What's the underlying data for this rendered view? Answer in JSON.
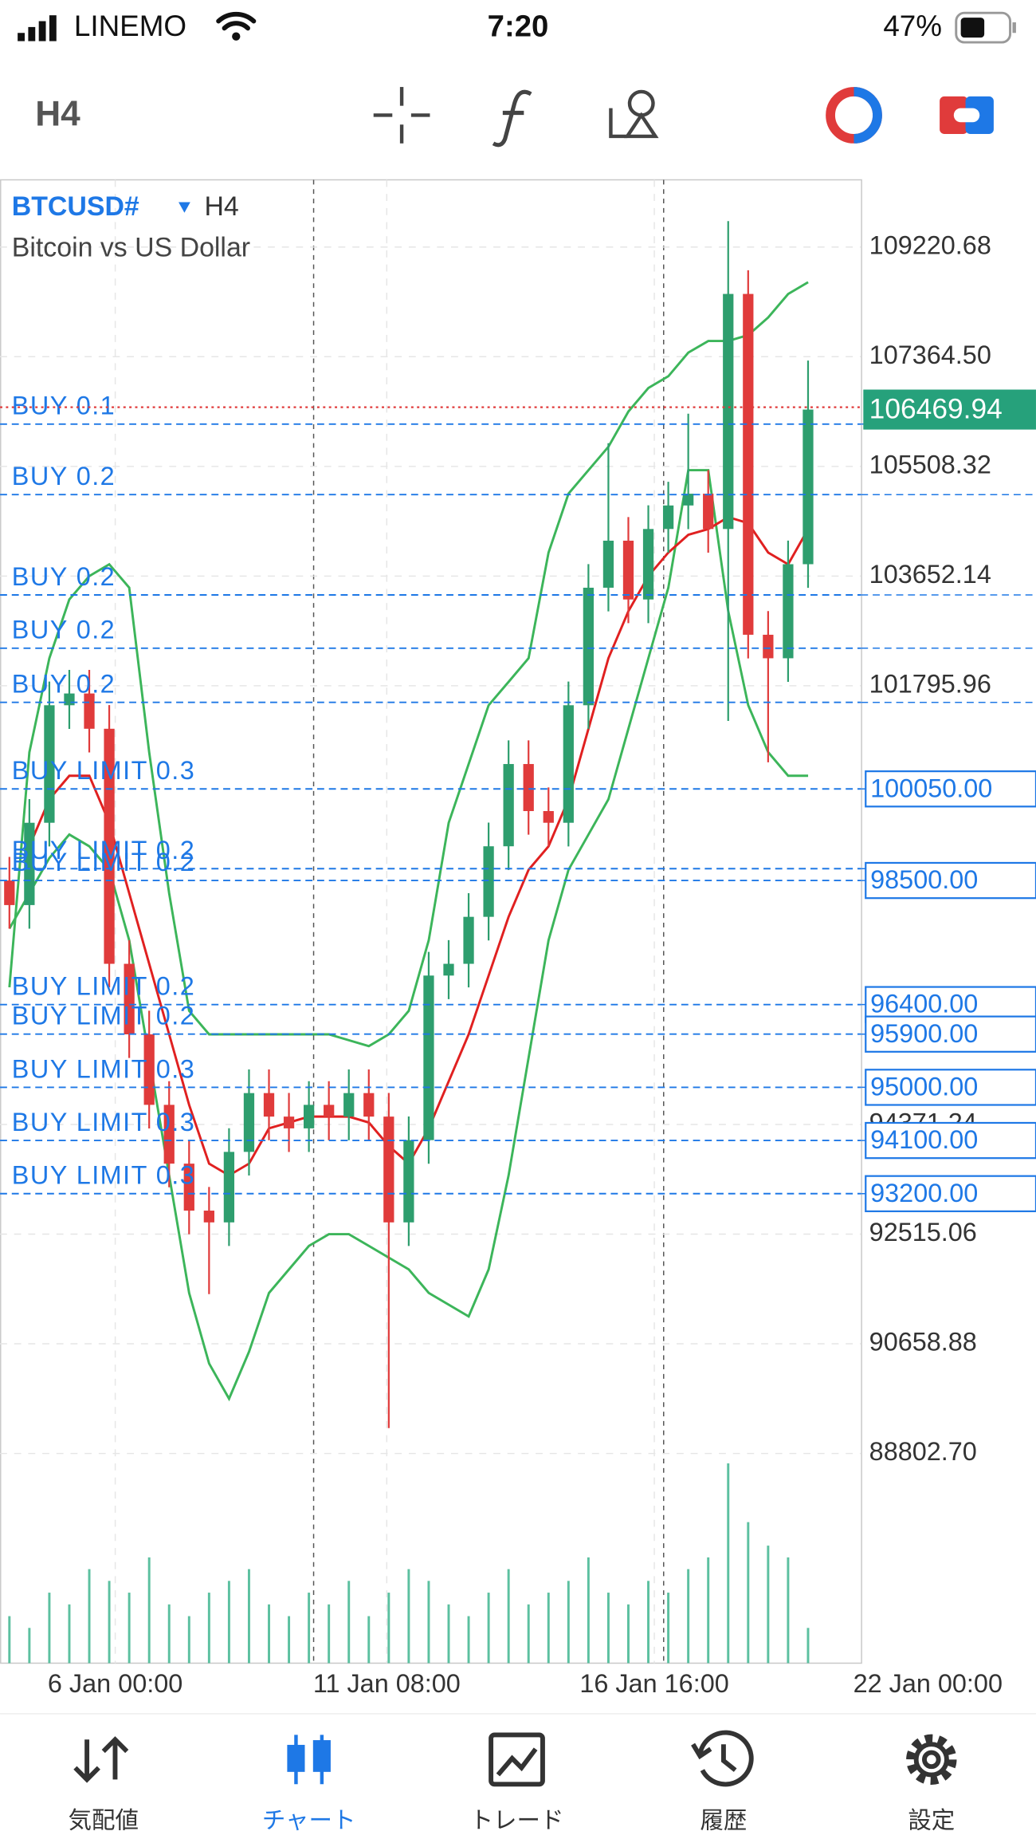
{
  "status_bar": {
    "carrier": "LINEMO",
    "time": "7:20",
    "battery": "47%"
  },
  "toolbar": {
    "timeframe": "H4"
  },
  "chart_data": {
    "type": "candlestick",
    "symbol": "BTCUSD#",
    "timeframe": "H4",
    "description": "Bitcoin vs US Dollar",
    "up_color": "#2e9e6e",
    "down_color": "#e03b3b",
    "x": [
      0,
      1,
      2,
      3,
      4,
      5,
      6,
      7,
      8,
      9,
      10,
      11,
      12,
      13,
      14,
      15,
      16,
      17,
      18,
      19,
      20,
      21,
      22,
      23,
      24,
      25,
      26,
      27,
      28,
      29,
      30,
      31,
      32,
      33,
      34,
      35,
      36,
      37,
      38,
      39,
      40
    ],
    "open": [
      98500,
      98084,
      99477,
      101466,
      101665,
      101068,
      97090,
      95896,
      94703,
      93708,
      92913,
      92714,
      93907,
      94902,
      94504,
      94305,
      94703,
      94504,
      94902,
      94504,
      92714,
      94106,
      96891,
      97090,
      97885,
      99079,
      100471,
      99675,
      99477,
      101466,
      103455,
      104251,
      103256,
      104449,
      104847,
      105046,
      104449,
      108427,
      102659,
      102261,
      103853
    ],
    "high": [
      98900,
      99877,
      101866,
      102065,
      102065,
      101468,
      97490,
      96296,
      95103,
      94108,
      93313,
      94307,
      95302,
      95302,
      94904,
      95103,
      95103,
      95302,
      95302,
      94904,
      94506,
      97291,
      97490,
      98285,
      99479,
      100871,
      100871,
      100075,
      101866,
      103855,
      105900,
      104651,
      104849,
      105247,
      106400,
      105446,
      109660,
      108827,
      103059,
      104253,
      107300
    ],
    "low": [
      97684,
      97684,
      99077,
      101066,
      100668,
      96690,
      95496,
      94303,
      93308,
      92513,
      91500,
      92314,
      93507,
      94104,
      93905,
      93905,
      94104,
      94104,
      94104,
      89233,
      92314,
      93706,
      96491,
      96690,
      97485,
      98679,
      99275,
      99077,
      99077,
      101066,
      103055,
      102856,
      102856,
      104049,
      104447,
      104049,
      101200,
      102259,
      100500,
      101861,
      103453
    ],
    "close": [
      98084,
      99477,
      101466,
      101665,
      101068,
      97090,
      95896,
      94703,
      93708,
      92913,
      92714,
      93907,
      94902,
      94504,
      94305,
      94703,
      94504,
      94902,
      94504,
      92714,
      94106,
      96891,
      97090,
      97885,
      99079,
      100471,
      99675,
      99477,
      101466,
      103455,
      104251,
      103256,
      104449,
      104847,
      105046,
      104449,
      108427,
      102659,
      102261,
      103853,
      106469.94
    ],
    "ma": {
      "color": "#e02020",
      "values": [
        null,
        99079,
        99874,
        100272,
        100272,
        99477,
        98283,
        97090,
        95896,
        94703,
        93708,
        93510,
        93708,
        94305,
        94405,
        94504,
        94504,
        94504,
        94405,
        94007,
        93708,
        94305,
        95101,
        95896,
        96891,
        97885,
        98681,
        99079,
        99874,
        101068,
        102261,
        103057,
        103653,
        104051,
        104350,
        104449,
        104648,
        104548,
        104051,
        103852,
        104449
      ]
    },
    "bb_upper": {
      "color": "#3cb55a",
      "values": [
        96692,
        100670,
        102261,
        103256,
        103653,
        103852,
        103455,
        100670,
        98283,
        96294,
        95896,
        95896,
        95896,
        95896,
        95896,
        95896,
        95896,
        95797,
        95697,
        95896,
        96294,
        97488,
        99477,
        100471,
        101466,
        101863,
        102261,
        104051,
        105046,
        105444,
        105841,
        106438,
        106836,
        107035,
        107433,
        107631,
        107631,
        107731,
        108029,
        108427,
        108626
      ]
    },
    "bb_lower": {
      "color": "#3cb55a",
      "values": [
        97686,
        98283,
        98880,
        99278,
        99079,
        98681,
        97488,
        95499,
        93510,
        91520,
        90327,
        89730,
        90526,
        91520,
        91918,
        92316,
        92515,
        92515,
        92316,
        92117,
        91918,
        91520,
        91322,
        91123,
        91918,
        93510,
        95499,
        97488,
        98681,
        99278,
        99874,
        101068,
        102261,
        103455,
        105444,
        105444,
        103057,
        101466,
        100670,
        100272,
        100272
      ]
    },
    "volume": {
      "color": "#5cc0a0",
      "lim": [
        0,
        200
      ],
      "values": [
        40,
        30,
        60,
        50,
        80,
        70,
        60,
        90,
        50,
        40,
        60,
        70,
        80,
        50,
        40,
        60,
        50,
        70,
        40,
        60,
        80,
        70,
        50,
        40,
        60,
        80,
        50,
        60,
        70,
        90,
        60,
        50,
        70,
        60,
        80,
        90,
        170,
        120,
        100,
        90,
        30
      ]
    },
    "xlim": [
      -0.47,
      42.65
    ],
    "xticks": [
      {
        "value": 5.3,
        "label": "6 Jan 00:00"
      },
      {
        "value": 18.9,
        "label": "11 Jan 08:00"
      },
      {
        "value": 32.3,
        "label": "16 Jan 16:00"
      },
      {
        "value": 46,
        "label": "22 Jan 00:00"
      }
    ],
    "ylim": [
      85254,
      110358
    ],
    "yticks": [
      109220.68,
      {
        "value": 107364.5,
        "label": "107364.50"
      },
      105508.32,
      103652.14,
      101795.96,
      94371.24,
      92515.06,
      90658.88,
      {
        "value": 88802.7,
        "label": "88802.70"
      }
    ],
    "grid": true,
    "current_price": 106469.94,
    "current_price_color": "#26a17b",
    "order_color": "#1e78e6",
    "orders": [
      {
        "label": "BUY 0.1",
        "price": 106224
      },
      {
        "label": "BUY 0.2",
        "price": 105030.75
      },
      {
        "label": "BUY 0.2",
        "price": 103332.72
      },
      {
        "label": "BUY 0.2",
        "price": 102431.48
      },
      {
        "label": "BUY 0.2",
        "price": 101514.84
      },
      {
        "label": "BUY LIMIT 0.3",
        "price": 100050,
        "price_label": "100050.00"
      },
      {
        "label": "BUY LIMIT 0.2",
        "price": 98700
      },
      {
        "label": "BUY LIMIT 0.2",
        "price": 98500,
        "price_label": "98500.00"
      },
      {
        "label": "BUY LIMIT 0.2",
        "price": 96400,
        "price_label": "96400.00"
      },
      {
        "label": "BUY LIMIT 0.2",
        "price": 95900,
        "price_label": "95900.00"
      },
      {
        "label": "BUY LIMIT 0.3",
        "price": 95000,
        "price_label": "95000.00"
      },
      {
        "label": "BUY LIMIT 0.3",
        "price": 94100,
        "price_label": "94100.00"
      },
      {
        "label": "BUY LIMIT 0.3",
        "price": 93200,
        "price_label": "93200.00"
      }
    ]
  },
  "nav": {
    "items": [
      {
        "label": "気配値"
      },
      {
        "label": "チャート",
        "active": true
      },
      {
        "label": "トレード"
      },
      {
        "label": "履歴"
      },
      {
        "label": "設定"
      }
    ]
  }
}
